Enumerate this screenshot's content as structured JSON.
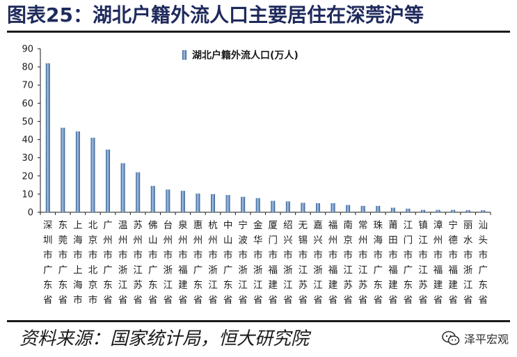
{
  "page": {
    "title": "图表25：湖北户籍外流人口主要居住在深莞沪等",
    "source": "资料来源：国家统计局，恒大研究院",
    "watermark": "泽平宏观"
  },
  "colors": {
    "bar": "#4f81bd",
    "bar_light": "#a9c4e6",
    "bar_dark": "#2c5a8f",
    "text": "#1a1a1a"
  },
  "chart_data": {
    "type": "bar",
    "categories": [
      "深圳市广东省",
      "东莞市广东省",
      "上海市上海市",
      "北京市北京市",
      "广州市广东省",
      "温州市浙江省",
      "苏州市江苏省",
      "佛山市广东省",
      "台州市浙江省",
      "泉州市福建省",
      "惠州市广东省",
      "杭州市浙江省",
      "中山市广东省",
      "宁波市浙江省",
      "金华市浙江省",
      "厦门市福建省",
      "绍兴市浙江省",
      "无锡市江苏省",
      "嘉兴市浙江省",
      "福州市福建省",
      "南京市江苏省",
      "常州市江苏省",
      "珠海市广东省",
      "莆田市福建省",
      "江门市广东省",
      "镇江市江苏省",
      "漳州市福建省",
      "宁德市福建省",
      "丽水市浙江省",
      "汕头市广东省"
    ],
    "series": [
      {
        "name": "湖北户籍外流人口(万人)",
        "values": [
          82,
          46.5,
          44.5,
          41,
          34.5,
          27,
          22,
          14.5,
          12.5,
          11.8,
          10.3,
          10,
          9.5,
          8.5,
          7.8,
          6.3,
          6,
          5.2,
          5,
          5,
          4,
          3.5,
          3.5,
          2.5,
          2,
          1.3,
          1.3,
          1.3,
          1.2,
          1.1
        ]
      }
    ],
    "ylim": [
      0,
      90
    ],
    "yticks": [
      0,
      10,
      20,
      30,
      40,
      50,
      60,
      70,
      80,
      90
    ],
    "legend": "top-center",
    "grid": false
  }
}
